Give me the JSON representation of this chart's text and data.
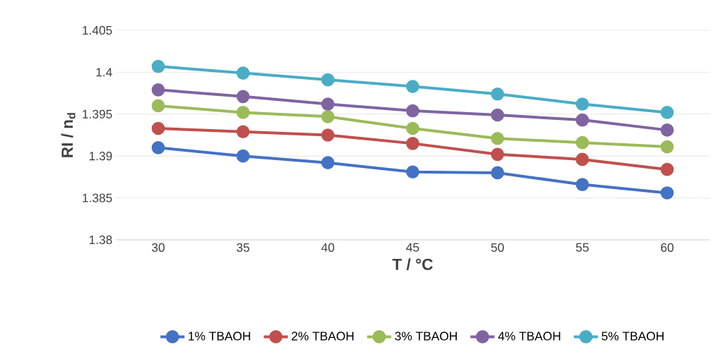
{
  "chart_data": {
    "type": "line",
    "xlabel": "T / °C",
    "ylabel": "RI / n$_{d}$",
    "categories": [
      "30",
      "35",
      "40",
      "45",
      "50",
      "55",
      "60"
    ],
    "series": [
      {
        "name": "1% TBAOH",
        "color": "#4472c4",
        "values": [
          1.391,
          1.39,
          1.3892,
          1.3881,
          1.388,
          1.3866,
          1.3856
        ]
      },
      {
        "name": "2% TBAOH",
        "color": "#c0504d",
        "values": [
          1.3933,
          1.3929,
          1.3925,
          1.3915,
          1.3902,
          1.3896,
          1.3884
        ]
      },
      {
        "name": "3% TBAOH",
        "color": "#9bbb59",
        "values": [
          1.396,
          1.3952,
          1.3947,
          1.3933,
          1.3921,
          1.3916,
          1.3911
        ]
      },
      {
        "name": "4% TBAOH",
        "color": "#8064a2",
        "values": [
          1.3979,
          1.3971,
          1.3962,
          1.3954,
          1.3949,
          1.3943,
          1.3931
        ]
      },
      {
        "name": "5% TBAOH",
        "color": "#4bacc6",
        "values": [
          1.4007,
          1.3999,
          1.3991,
          1.3983,
          1.3974,
          1.3962,
          1.3952
        ]
      }
    ],
    "ylim": [
      1.38,
      1.405
    ],
    "yticks": [
      1.38,
      1.385,
      1.39,
      1.395,
      1.4,
      1.405
    ],
    "grid": "y",
    "legend": "bottom",
    "marker": "circle",
    "line_style": "solid"
  }
}
